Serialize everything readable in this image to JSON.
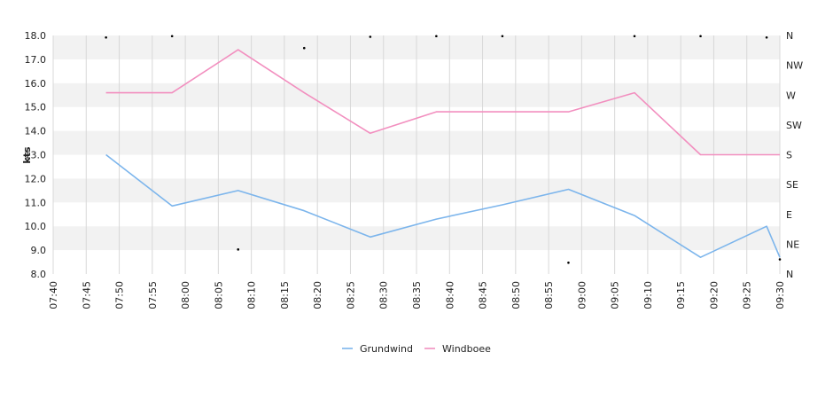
{
  "chart_data": {
    "type": "line",
    "ylabel": "kts",
    "ylim": [
      8.0,
      18.0
    ],
    "y_ticks": [
      "8.0",
      "9.0",
      "10.0",
      "11.0",
      "12.0",
      "13.0",
      "14.0",
      "15.0",
      "16.0",
      "17.0",
      "18.0"
    ],
    "x_ticks": [
      "07:40",
      "07:45",
      "07:50",
      "07:55",
      "08:00",
      "08:05",
      "08:10",
      "08:15",
      "08:20",
      "08:25",
      "08:30",
      "08:35",
      "08:40",
      "08:45",
      "08:50",
      "08:55",
      "09:00",
      "09:05",
      "09:10",
      "09:15",
      "09:20",
      "09:25",
      "09:30"
    ],
    "xlim": [
      "07:40",
      "09:30"
    ],
    "right_axis": {
      "labels": [
        "N",
        "NE",
        "E",
        "SE",
        "S",
        "SW",
        "W",
        "NW",
        "N"
      ],
      "range_degrees": [
        0,
        360
      ]
    },
    "grid": "on",
    "legend_position": "bottom-center",
    "series": [
      {
        "name": "Grundwind",
        "color": "#7cb5ec",
        "x": [
          "07:48",
          "07:58",
          "08:08",
          "08:18",
          "08:28",
          "08:38",
          "08:48",
          "08:58",
          "09:08",
          "09:18",
          "09:28",
          "09:30"
        ],
        "values": [
          13.0,
          10.85,
          11.5,
          10.65,
          9.55,
          10.3,
          10.9,
          11.55,
          10.45,
          8.7,
          10.0,
          8.7
        ]
      },
      {
        "name": "Windboee",
        "color": "#f28fbf",
        "x": [
          "07:48",
          "07:58",
          "08:08",
          "08:18",
          "08:28",
          "08:38",
          "08:48",
          "08:58",
          "09:08",
          "09:18",
          "09:28",
          "09:30"
        ],
        "values": [
          15.6,
          15.6,
          17.4,
          15.6,
          13.9,
          14.8,
          14.8,
          14.8,
          15.6,
          13.0,
          13.0,
          13.0
        ]
      }
    ],
    "direction_points": {
      "x": [
        "07:48",
        "07:58",
        "08:08",
        "08:18",
        "08:28",
        "08:38",
        "08:48",
        "08:58",
        "09:08",
        "09:18",
        "09:28",
        "09:30"
      ],
      "degrees": [
        357,
        359,
        37,
        341,
        358,
        359,
        359,
        17,
        359,
        359,
        357,
        22
      ]
    }
  }
}
